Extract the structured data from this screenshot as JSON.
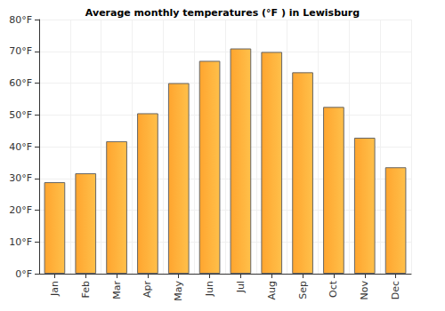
{
  "chart_data": {
    "type": "bar",
    "title": "Average monthly temperatures (°F ) in Lewisburg",
    "categories": [
      "Jan",
      "Feb",
      "Mar",
      "Apr",
      "May",
      "Jun",
      "Jul",
      "Aug",
      "Sep",
      "Oct",
      "Nov",
      "Dec"
    ],
    "values": [
      28.8,
      31.6,
      41.7,
      50.5,
      60.0,
      67.0,
      70.9,
      69.8,
      63.4,
      52.5,
      42.8,
      33.5
    ],
    "color": "#ffa52f",
    "ylim": [
      0,
      80
    ],
    "yticks": [
      {
        "value": 0,
        "label": "0°F"
      },
      {
        "value": 10,
        "label": "10°F"
      },
      {
        "value": 20,
        "label": "20°F"
      },
      {
        "value": 30,
        "label": "30°F"
      },
      {
        "value": 40,
        "label": "40°F"
      },
      {
        "value": 50,
        "label": "50°F"
      },
      {
        "value": 60,
        "label": "60°F"
      },
      {
        "value": 70,
        "label": "70°F"
      },
      {
        "value": 80,
        "label": "80°F"
      }
    ],
    "grid": true
  }
}
